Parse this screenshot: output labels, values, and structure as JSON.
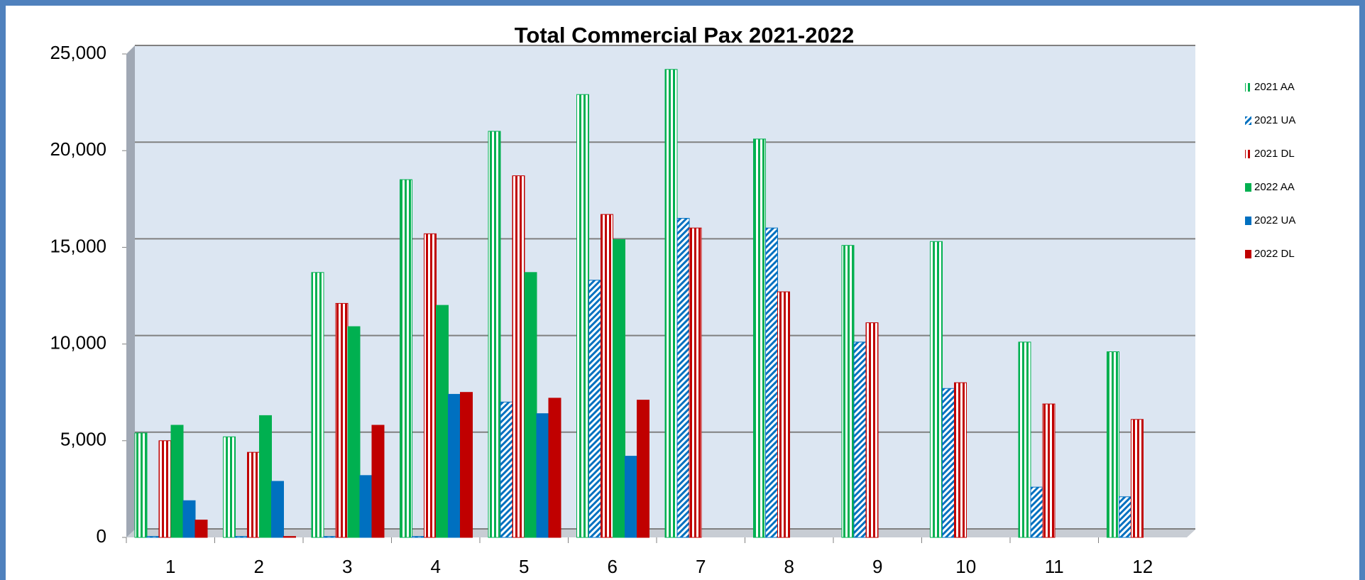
{
  "chart_data": {
    "type": "bar",
    "title": "Total Commercial Pax  2021-2022",
    "categories": [
      "1",
      "2",
      "3",
      "4",
      "5",
      "6",
      "7",
      "8",
      "9",
      "10",
      "11",
      "12"
    ],
    "series": [
      {
        "name": "2021 AA",
        "color": "#00b050",
        "pattern": "vertical",
        "values": [
          5400,
          5200,
          13700,
          18500,
          21000,
          22900,
          24200,
          20600,
          15100,
          15300,
          10100,
          9600
        ]
      },
      {
        "name": "2021 UA",
        "color": "#0070c0",
        "pattern": "diagonal",
        "values": [
          50,
          50,
          50,
          50,
          7000,
          13300,
          16500,
          16000,
          10100,
          7700,
          2600,
          2100
        ]
      },
      {
        "name": "2021 DL",
        "color": "#c00000",
        "pattern": "vertical",
        "values": [
          5000,
          4400,
          12100,
          15700,
          18700,
          16700,
          16000,
          12700,
          11100,
          8000,
          6900,
          6100
        ]
      },
      {
        "name": "2022 AA",
        "color": "#00b050",
        "pattern": "solid",
        "values": [
          5800,
          6300,
          10900,
          12000,
          13700,
          15400,
          null,
          null,
          null,
          null,
          null,
          null
        ]
      },
      {
        "name": "2022 UA",
        "color": "#0070c0",
        "pattern": "solid",
        "values": [
          1900,
          2900,
          3200,
          7400,
          6400,
          4200,
          null,
          null,
          null,
          null,
          null,
          null
        ]
      },
      {
        "name": "2022 DL",
        "color": "#c00000",
        "pattern": "solid",
        "values": [
          900,
          50,
          5800,
          7500,
          7200,
          7100,
          null,
          null,
          null,
          null,
          null,
          null
        ]
      }
    ],
    "ylim": [
      0,
      25000
    ],
    "yticks": [
      0,
      {
        "value": 5000,
        "label": "5,000"
      },
      {
        "value": 10000,
        "label": "10,000"
      },
      {
        "value": 15000,
        "label": "15,000"
      },
      {
        "value": 20000,
        "label": "20,000"
      },
      {
        "value": 25000,
        "label": "25,000"
      }
    ],
    "grid": true,
    "legend": "right"
  }
}
